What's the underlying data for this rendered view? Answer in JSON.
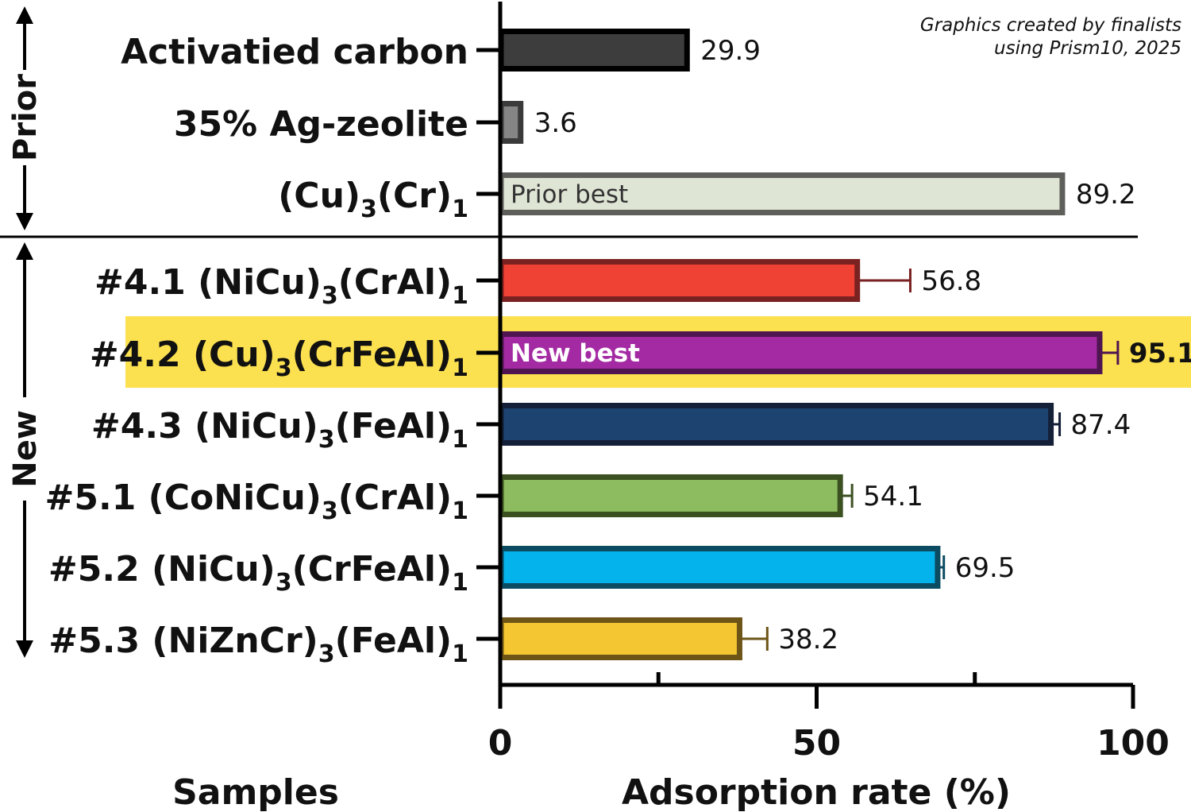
{
  "credit": {
    "line1": "Graphics created by finalists",
    "line2": "using Prism10, 2025"
  },
  "chart_data": {
    "type": "bar",
    "orientation": "horizontal",
    "xlabel": "Samples",
    "ylabel": "Adsorption rate (%)",
    "xlim": [
      0,
      100
    ],
    "major_ticks": [
      0,
      50,
      100
    ],
    "minor_ticks": [
      25,
      75
    ],
    "groups": [
      {
        "name": "Prior",
        "rows": [
          0,
          2
        ]
      },
      {
        "name": "New",
        "rows": [
          3,
          8
        ]
      }
    ],
    "categories": [
      {
        "main": "Activatied carbon",
        "sub1": "",
        "mid": "",
        "sub2": ""
      },
      {
        "main": "35% Ag-zeolite",
        "sub1": "",
        "mid": "",
        "sub2": ""
      },
      {
        "main": "(Cu)",
        "sub1": "3",
        "mid": "(Cr)",
        "sub2": "1"
      },
      {
        "main": "#4.1 (NiCu)",
        "sub1": "3",
        "mid": "(CrAl)",
        "sub2": "1"
      },
      {
        "main": "#4.2 (Cu)",
        "sub1": "3",
        "mid": "(CrFeAl)",
        "sub2": "1"
      },
      {
        "main": "#4.3 (NiCu)",
        "sub1": "3",
        "mid": "(FeAl)",
        "sub2": "1"
      },
      {
        "main": "#5.1 (CoNiCu)",
        "sub1": "3",
        "mid": "(CrAl)",
        "sub2": "1"
      },
      {
        "main": "#5.2 (NiCu)",
        "sub1": "3",
        "mid": "(CrFeAl)",
        "sub2": "1"
      },
      {
        "main": "#5.3 (NiZnCr)",
        "sub1": "3",
        "mid": "(FeAl)",
        "sub2": "1"
      }
    ],
    "values": [
      29.9,
      3.6,
      89.2,
      56.8,
      95.1,
      87.4,
      54.1,
      69.5,
      38.2
    ],
    "value_labels": [
      "29.9",
      "3.6",
      "89.2",
      "56.8",
      "95.1",
      "87.4",
      "54.1",
      "69.5",
      "38.2"
    ],
    "errors": [
      0,
      0,
      0,
      8.0,
      2.5,
      1.0,
      1.5,
      0.6,
      4.0
    ],
    "fill_colors": [
      "#3d3d3d",
      "#858585",
      "#dfe5d5",
      "#f04234",
      "#a32aa2",
      "#1d4471",
      "#8dbb5f",
      "#05b3ec",
      "#f4c632"
    ],
    "stroke_colors": [
      "#000000",
      "#3a3a3a",
      "#5e5f5b",
      "#7a2121",
      "#4e1551",
      "#141f38",
      "#3c5122",
      "#0c4c62",
      "#6d5518"
    ],
    "inside_labels": [
      "",
      "",
      "Prior best",
      "",
      "New best",
      "",
      "",
      "",
      ""
    ],
    "highlight_row": 4,
    "highlight_color": "#fbe04f",
    "bold_value_row": 4
  }
}
